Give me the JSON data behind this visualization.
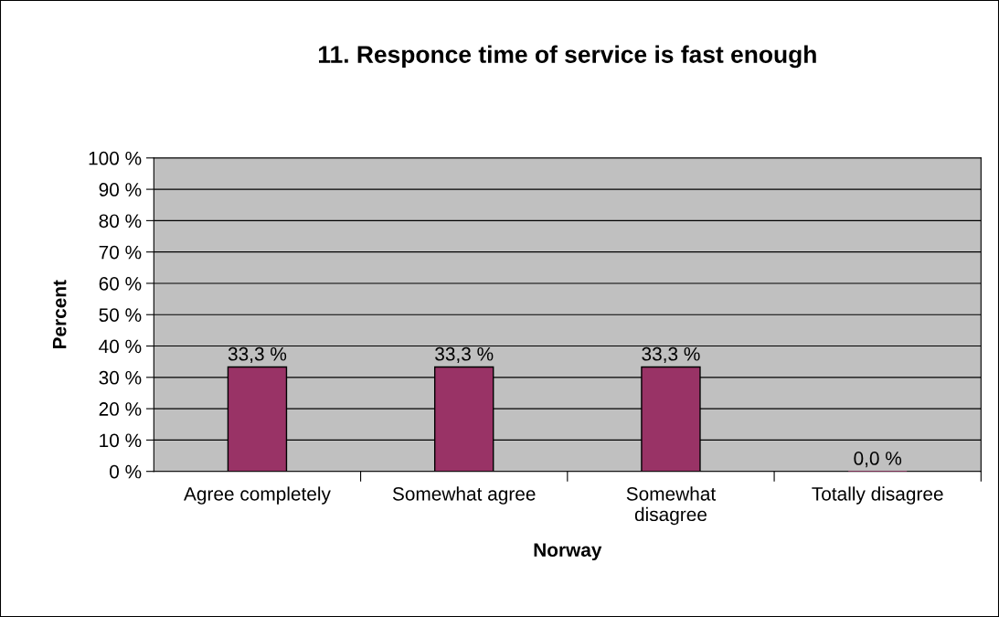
{
  "chart_data": {
    "type": "bar",
    "title": "11. Responce time of service is fast enough",
    "xlabel": "Norway",
    "ylabel": "Percent",
    "categories": [
      "Agree completely",
      "Somewhat agree",
      "Somewhat\ndisagree",
      "Totally disagree"
    ],
    "values": [
      33.3,
      33.3,
      33.3,
      0.0
    ],
    "value_labels": [
      "33,3 %",
      "33,3 %",
      "33,3 %",
      "0,0 %"
    ],
    "color": "#993366",
    "ylim": [
      0,
      100
    ],
    "yticks": [
      {
        "value": 0,
        "label": "0 %"
      },
      {
        "value": 10,
        "label": "10 %"
      },
      {
        "value": 20,
        "label": "20 %"
      },
      {
        "value": 30,
        "label": "30 %"
      },
      {
        "value": 40,
        "label": "40 %"
      },
      {
        "value": 50,
        "label": "50 %"
      },
      {
        "value": 60,
        "label": "60 %"
      },
      {
        "value": 70,
        "label": "70 %"
      },
      {
        "value": 80,
        "label": "80 %"
      },
      {
        "value": 90,
        "label": "90 %"
      },
      {
        "value": 100,
        "label": "100 %"
      }
    ],
    "grid": "y",
    "legend": false
  }
}
